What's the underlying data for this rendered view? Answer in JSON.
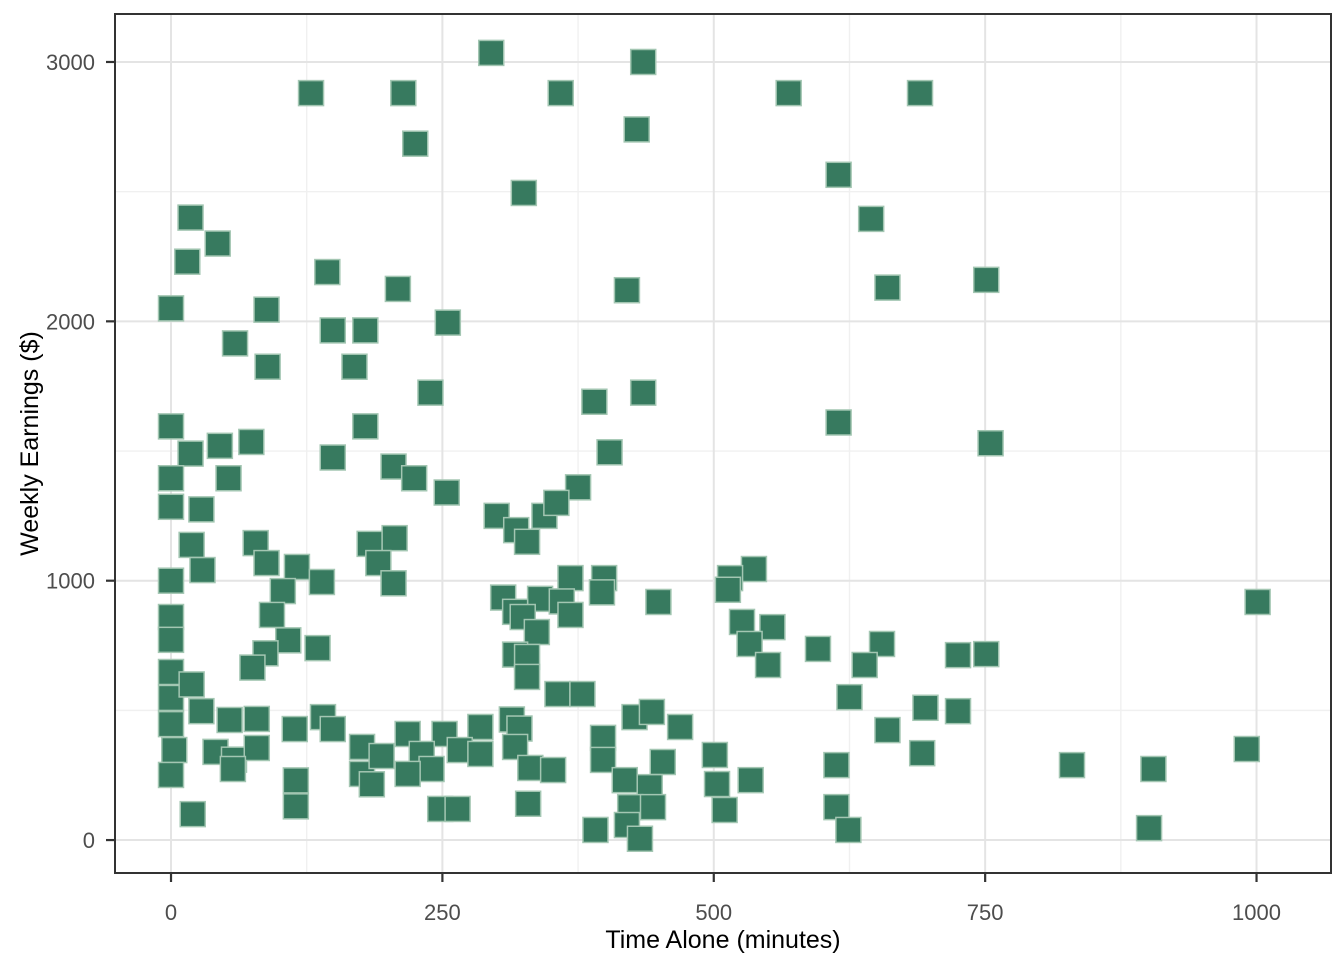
{
  "chart_data": {
    "type": "scatter",
    "title": "",
    "xlabel": "Time Alone (minutes)",
    "ylabel": "Weekly Earnings ($)",
    "x_axis": {
      "ticks": [
        0,
        250,
        500,
        750,
        1000
      ],
      "minor_ticks": [
        125,
        375,
        625,
        875
      ],
      "range": [
        -51.6,
        1068.6
      ]
    },
    "y_axis": {
      "ticks": [
        0,
        1000,
        2000,
        3000
      ],
      "minor_ticks": [
        500,
        1500,
        2500
      ],
      "range": [
        -127,
        3185
      ]
    },
    "grid": true,
    "legend": false,
    "marker_shape": "square",
    "marker_size": 25,
    "colors": {
      "marker_fill": "#377a5f",
      "marker_stroke": "#a3c6b2",
      "grid_major": "#e4e4e4",
      "grid_minor": "#f0f0f0",
      "panel_border": "#333333",
      "tick_mark": "#333333",
      "tick_label": "#4d4d4d",
      "axis_title": "#000000",
      "background": "#ffffff"
    },
    "points": [
      [
        295,
        3035
      ],
      [
        435,
        3000
      ],
      [
        129,
        2880
      ],
      [
        214,
        2880
      ],
      [
        359,
        2880
      ],
      [
        569,
        2880
      ],
      [
        690,
        2880
      ],
      [
        429,
        2740
      ],
      [
        225,
        2685
      ],
      [
        615,
        2565
      ],
      [
        325,
        2495
      ],
      [
        18,
        2400
      ],
      [
        645,
        2395
      ],
      [
        43,
        2300
      ],
      [
        15,
        2230
      ],
      [
        144,
        2190
      ],
      [
        751,
        2160
      ],
      [
        660,
        2130
      ],
      [
        209,
        2125
      ],
      [
        420,
        2120
      ],
      [
        0,
        2050
      ],
      [
        88,
        2045
      ],
      [
        255,
        1995
      ],
      [
        149,
        1965
      ],
      [
        179,
        1965
      ],
      [
        59,
        1915
      ],
      [
        89,
        1825
      ],
      [
        169,
        1825
      ],
      [
        435,
        1725
      ],
      [
        239,
        1725
      ],
      [
        390,
        1690
      ],
      [
        615,
        1610
      ],
      [
        0,
        1595
      ],
      [
        179,
        1595
      ],
      [
        755,
        1530
      ],
      [
        45,
        1520
      ],
      [
        74,
        1535
      ],
      [
        18,
        1490
      ],
      [
        149,
        1475
      ],
      [
        404,
        1495
      ],
      [
        205,
        1440
      ],
      [
        224,
        1395
      ],
      [
        0,
        1395
      ],
      [
        53,
        1395
      ],
      [
        375,
        1360
      ],
      [
        254,
        1340
      ],
      [
        0,
        1285
      ],
      [
        28,
        1275
      ],
      [
        300,
        1250
      ],
      [
        344,
        1250
      ],
      [
        355,
        1300
      ],
      [
        19,
        1138
      ],
      [
        78,
        1145
      ],
      [
        183,
        1142
      ],
      [
        206,
        1164
      ],
      [
        318,
        1195
      ],
      [
        328,
        1150
      ],
      [
        88,
        1068
      ],
      [
        191,
        1068
      ],
      [
        116,
        1053
      ],
      [
        537,
        1045
      ],
      [
        29,
        1041
      ],
      [
        368,
        1010
      ],
      [
        399,
        1010
      ],
      [
        515,
        1010
      ],
      [
        0,
        1000
      ],
      [
        139,
        995
      ],
      [
        205,
        990
      ],
      [
        103,
        960
      ],
      [
        397,
        955
      ],
      [
        513,
        965
      ],
      [
        340,
        930
      ],
      [
        360,
        920
      ],
      [
        449,
        918
      ],
      [
        1001,
        918
      ],
      [
        306,
        935
      ],
      [
        317,
        880
      ],
      [
        93,
        868
      ],
      [
        324,
        860
      ],
      [
        368,
        868
      ],
      [
        0,
        860
      ],
      [
        526,
        841
      ],
      [
        554,
        821
      ],
      [
        337,
        802
      ],
      [
        0,
        772
      ],
      [
        108,
        770
      ],
      [
        135,
        740
      ],
      [
        533,
        756
      ],
      [
        596,
        737
      ],
      [
        655,
        756
      ],
      [
        725,
        713
      ],
      [
        751,
        717
      ],
      [
        317,
        715
      ],
      [
        328,
        706
      ],
      [
        87,
        720
      ],
      [
        75,
        665
      ],
      [
        0,
        648
      ],
      [
        550,
        675
      ],
      [
        639,
        675
      ],
      [
        328,
        629
      ],
      [
        625,
        551
      ],
      [
        0,
        548
      ],
      [
        19,
        600
      ],
      [
        54,
        463
      ],
      [
        79,
        467
      ],
      [
        140,
        474
      ],
      [
        149,
        428
      ],
      [
        114,
        428
      ],
      [
        218,
        409
      ],
      [
        252,
        409
      ],
      [
        0,
        447
      ],
      [
        356,
        563
      ],
      [
        379,
        563
      ],
      [
        427,
        474
      ],
      [
        443,
        494
      ],
      [
        469,
        436
      ],
      [
        398,
        394
      ],
      [
        285,
        436
      ],
      [
        314,
        465
      ],
      [
        695,
        510
      ],
      [
        725,
        497
      ],
      [
        660,
        424
      ],
      [
        321,
        430
      ],
      [
        3,
        347
      ],
      [
        0,
        251
      ],
      [
        41,
        340
      ],
      [
        58,
        310
      ],
      [
        79,
        355
      ],
      [
        28,
        497
      ],
      [
        176,
        359
      ],
      [
        231,
        332
      ],
      [
        266,
        347
      ],
      [
        285,
        332
      ],
      [
        317,
        359
      ],
      [
        331,
        278
      ],
      [
        352,
        270
      ],
      [
        398,
        309
      ],
      [
        240,
        274
      ],
      [
        57,
        274
      ],
      [
        176,
        255
      ],
      [
        218,
        255
      ],
      [
        194,
        324
      ],
      [
        453,
        301
      ],
      [
        501,
        328
      ],
      [
        534,
        231
      ],
      [
        613,
        289
      ],
      [
        692,
        335
      ],
      [
        830,
        289
      ],
      [
        905,
        274
      ],
      [
        991,
        351
      ],
      [
        115,
        230
      ],
      [
        115,
        130
      ],
      [
        185,
        215
      ],
      [
        418,
        231
      ],
      [
        441,
        204
      ],
      [
        503,
        216
      ],
      [
        423,
        127
      ],
      [
        444,
        127
      ],
      [
        510,
        116
      ],
      [
        613,
        127
      ],
      [
        248,
        120
      ],
      [
        264,
        120
      ],
      [
        20,
        100
      ],
      [
        329,
        140
      ],
      [
        391,
        39
      ],
      [
        420,
        58
      ],
      [
        432,
        5
      ],
      [
        624,
        39
      ],
      [
        901,
        46
      ]
    ]
  }
}
